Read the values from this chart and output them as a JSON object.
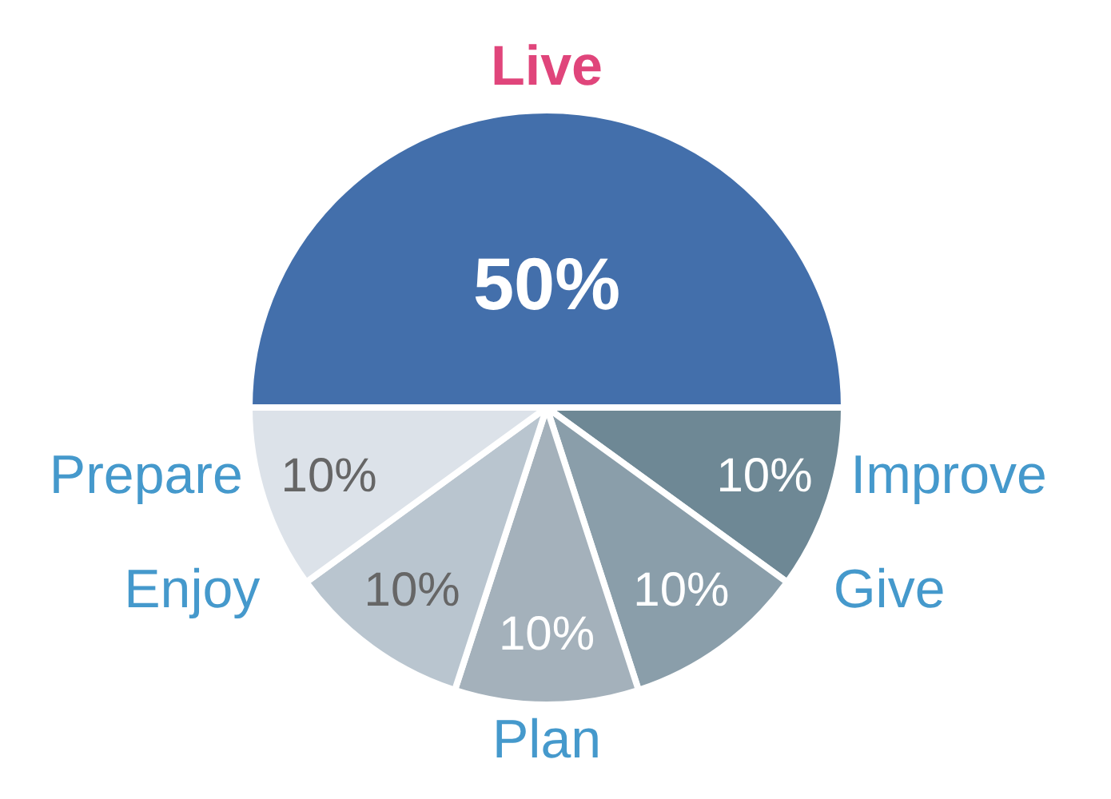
{
  "chart_data": {
    "type": "pie",
    "categories": [
      "Live",
      "Improve",
      "Give",
      "Plan",
      "Enjoy",
      "Prepare"
    ],
    "values": [
      50,
      10,
      10,
      10,
      10,
      10
    ],
    "colors": [
      "#436fab",
      "#6e8895",
      "#8a9eaa",
      "#a4b1bb",
      "#b9c5cf",
      "#dce2e9"
    ],
    "value_labels": [
      "50%",
      "10%",
      "10%",
      "10%",
      "10%",
      "10%"
    ]
  }
}
